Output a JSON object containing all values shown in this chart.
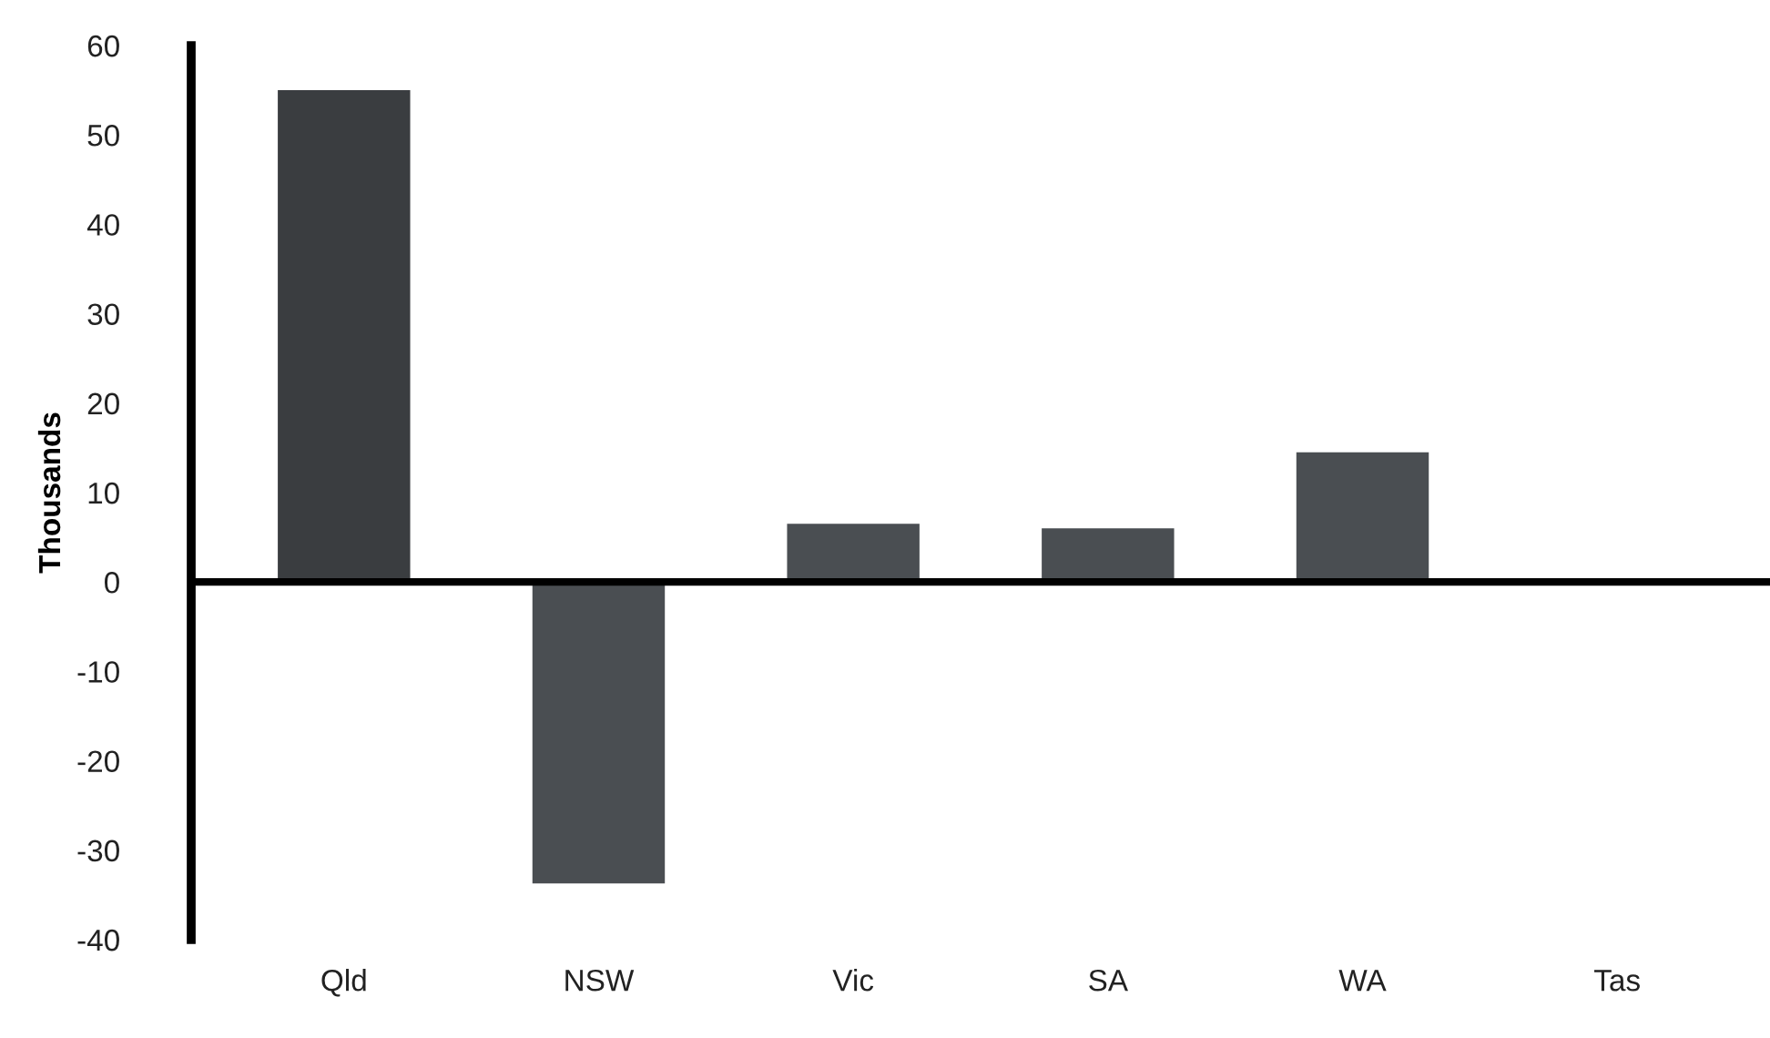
{
  "chart_data": {
    "type": "bar",
    "ylabel": "Thousands",
    "categories": [
      "Qld",
      "NSW",
      "Vic",
      "SA",
      "WA",
      "Tas"
    ],
    "values": [
      55,
      -33.7,
      6.5,
      6,
      14.5,
      0
    ],
    "colors": [
      "#3a3d40",
      "#4a4e52",
      "#4a4e52",
      "#4a4e52",
      "#4a4e52",
      "#4a4e52"
    ],
    "ylim": [
      -40,
      60
    ],
    "yticks": [
      -40,
      -30,
      -20,
      -10,
      0,
      10,
      20,
      30,
      40,
      50,
      60
    ]
  }
}
